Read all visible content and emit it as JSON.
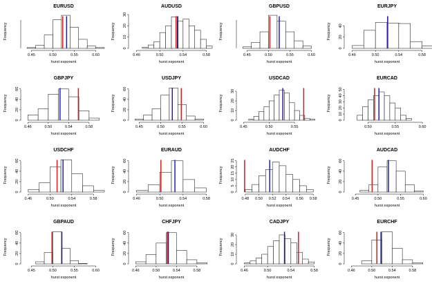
{
  "colors": {
    "red_line": "#d7191c",
    "blue_line": "#1f1fb4",
    "bar_stroke": "#000000",
    "bar_fill": "#ffffff"
  },
  "chart_data": [
    {
      "type": "histogram",
      "title": "EURUSD",
      "xlabel": "hurst exponent",
      "ylabel": "Frequency",
      "xlim": [
        0.43,
        0.62
      ],
      "x_ticks": [
        "0.45",
        "0.50",
        "0.55",
        "0.60"
      ],
      "ylim": [
        0,
        45
      ],
      "y_ticks": [],
      "bins": [
        [
          0.44,
          0.46
        ],
        [
          0.46,
          0.48
        ],
        [
          0.48,
          0.5
        ],
        [
          0.5,
          0.52
        ],
        [
          0.52,
          0.54
        ],
        [
          0.54,
          0.56
        ],
        [
          0.56,
          0.58
        ],
        [
          0.58,
          0.6
        ],
        [
          0.6,
          0.62
        ]
      ],
      "counts": [
        1,
        4,
        18,
        38,
        44,
        28,
        12,
        3,
        1
      ],
      "red_line": 0.523,
      "blue_line": 0.532
    },
    {
      "type": "histogram",
      "title": "AUDUSD",
      "xlabel": "hurst exponent",
      "ylabel": "Frequency",
      "xlim": [
        0.45,
        0.59
      ],
      "x_ticks": [
        "0.46",
        "0.50",
        "0.54",
        "0.58"
      ],
      "ylim": [
        0,
        30
      ],
      "y_ticks": [
        "0",
        "10",
        "20",
        "30"
      ],
      "bins": [
        [
          0.47,
          0.48
        ],
        [
          0.48,
          0.49
        ],
        [
          0.49,
          0.5
        ],
        [
          0.5,
          0.51
        ],
        [
          0.51,
          0.52
        ],
        [
          0.52,
          0.53
        ],
        [
          0.53,
          0.54
        ],
        [
          0.54,
          0.55
        ],
        [
          0.55,
          0.56
        ],
        [
          0.56,
          0.57
        ],
        [
          0.57,
          0.58
        ],
        [
          0.58,
          0.59
        ]
      ],
      "counts": [
        1,
        3,
        6,
        14,
        20,
        28,
        24,
        26,
        20,
        16,
        8,
        2
      ],
      "red_line": 0.528,
      "blue_line": 0.531
    },
    {
      "type": "histogram",
      "title": "GBPUSD",
      "xlabel": "hurst exponent",
      "ylabel": "Frequency",
      "xlim": [
        0.43,
        0.62
      ],
      "x_ticks": [
        "0.45",
        "0.50",
        "0.55",
        "0.60"
      ],
      "ylim": [
        0,
        45
      ],
      "y_ticks": [],
      "bins": [
        [
          0.44,
          0.46
        ],
        [
          0.46,
          0.48
        ],
        [
          0.48,
          0.5
        ],
        [
          0.5,
          0.52
        ],
        [
          0.52,
          0.54
        ],
        [
          0.54,
          0.56
        ],
        [
          0.56,
          0.58
        ],
        [
          0.58,
          0.6
        ]
      ],
      "counts": [
        2,
        8,
        22,
        44,
        36,
        22,
        10,
        3
      ],
      "red_line": 0.503,
      "blue_line": 0.525
    },
    {
      "type": "histogram",
      "title": "EURJPY",
      "xlabel": "hurst exponent",
      "ylabel": "Frequency",
      "xlim": [
        0.45,
        0.59
      ],
      "x_ticks": [
        "0.46",
        "0.50",
        "0.54",
        "0.58"
      ],
      "ylim": [
        0,
        60
      ],
      "y_ticks": [
        "0",
        "20",
        "40"
      ],
      "bins": [
        [
          0.46,
          0.48
        ],
        [
          0.48,
          0.5
        ],
        [
          0.5,
          0.52
        ],
        [
          0.52,
          0.54
        ],
        [
          0.54,
          0.56
        ],
        [
          0.56,
          0.58
        ],
        [
          0.58,
          0.6
        ]
      ],
      "counts": [
        5,
        32,
        46,
        45,
        44,
        12,
        4
      ],
      "red_line": 0.521,
      "blue_line": 0.521
    },
    {
      "type": "histogram",
      "title": "GBPJPY",
      "xlabel": "hurst exponent",
      "ylabel": "Frequency",
      "xlim": [
        0.45,
        0.61
      ],
      "x_ticks": [
        "0.46",
        "0.50",
        "0.54",
        "0.58"
      ],
      "ylim": [
        0,
        65
      ],
      "y_ticks": [
        "0",
        "20",
        "40",
        "60"
      ],
      "bins": [
        [
          0.46,
          0.48
        ],
        [
          0.48,
          0.5
        ],
        [
          0.5,
          0.52
        ],
        [
          0.52,
          0.54
        ],
        [
          0.54,
          0.56
        ],
        [
          0.56,
          0.58
        ],
        [
          0.58,
          0.6
        ]
      ],
      "counts": [
        10,
        22,
        50,
        60,
        45,
        18,
        4
      ],
      "red_line": 0.559,
      "blue_line": 0.523
    },
    {
      "type": "histogram",
      "title": "USDJPY",
      "xlabel": "hurst exponent",
      "ylabel": "Frequency",
      "xlim": [
        0.43,
        0.62
      ],
      "x_ticks": [
        "0.45",
        "0.50",
        "0.55",
        "0.60"
      ],
      "ylim": [
        0,
        65
      ],
      "y_ticks": [
        "0",
        "20",
        "40",
        "60"
      ],
      "bins": [
        [
          0.44,
          0.46
        ],
        [
          0.46,
          0.48
        ],
        [
          0.48,
          0.5
        ],
        [
          0.5,
          0.52
        ],
        [
          0.52,
          0.54
        ],
        [
          0.54,
          0.56
        ],
        [
          0.56,
          0.58
        ],
        [
          0.58,
          0.6
        ]
      ],
      "counts": [
        2,
        10,
        22,
        48,
        62,
        30,
        8,
        2
      ],
      "red_line": 0.548,
      "blue_line": 0.527
    },
    {
      "type": "histogram",
      "title": "USDCAD",
      "xlabel": "hurst exponent",
      "ylabel": "Frequency",
      "xlim": [
        0.44,
        0.6
      ],
      "x_ticks": [
        "0.45",
        "0.50",
        "0.55"
      ],
      "ylim": [
        0,
        35
      ],
      "y_ticks": [
        "0",
        "10",
        "20",
        "30"
      ],
      "bins": [
        [
          0.46,
          0.47
        ],
        [
          0.47,
          0.48
        ],
        [
          0.48,
          0.49
        ],
        [
          0.49,
          0.5
        ],
        [
          0.5,
          0.51
        ],
        [
          0.51,
          0.52
        ],
        [
          0.52,
          0.53
        ],
        [
          0.53,
          0.54
        ],
        [
          0.54,
          0.55
        ],
        [
          0.55,
          0.56
        ],
        [
          0.56,
          0.57
        ],
        [
          0.57,
          0.58
        ],
        [
          0.58,
          0.59
        ]
      ],
      "counts": [
        1,
        4,
        9,
        14,
        20,
        26,
        31,
        28,
        18,
        10,
        5,
        2,
        1
      ],
      "red_line": 0.568,
      "blue_line": 0.527
    },
    {
      "type": "histogram",
      "title": "EURCAD",
      "xlabel": "hurst exponent",
      "ylabel": "Frequency",
      "xlim": [
        0.46,
        0.61
      ],
      "x_ticks": [
        "0.50",
        "0.55",
        "0.60"
      ],
      "ylim": [
        0,
        55
      ],
      "y_ticks": [
        "0",
        "10",
        "20",
        "30",
        "40",
        "50"
      ],
      "bins": [
        [
          0.48,
          0.49
        ],
        [
          0.49,
          0.5
        ],
        [
          0.5,
          0.51
        ],
        [
          0.51,
          0.52
        ],
        [
          0.52,
          0.53
        ],
        [
          0.53,
          0.54
        ],
        [
          0.54,
          0.55
        ],
        [
          0.55,
          0.56
        ],
        [
          0.56,
          0.57
        ],
        [
          0.57,
          0.58
        ]
      ],
      "counts": [
        8,
        22,
        33,
        40,
        46,
        40,
        28,
        20,
        8,
        3
      ],
      "red_line": 0.512,
      "blue_line": 0.52
    },
    {
      "type": "histogram",
      "title": "USDCHF",
      "xlabel": "hurst exponent",
      "ylabel": "Frequency",
      "xlim": [
        0.45,
        0.6
      ],
      "x_ticks": [
        "0.46",
        "0.50",
        "0.54",
        "0.58"
      ],
      "ylim": [
        0,
        65
      ],
      "y_ticks": [
        "0",
        "20",
        "40",
        "60"
      ],
      "bins": [
        [
          0.46,
          0.48
        ],
        [
          0.48,
          0.5
        ],
        [
          0.5,
          0.52
        ],
        [
          0.52,
          0.54
        ],
        [
          0.54,
          0.56
        ],
        [
          0.56,
          0.58
        ],
        [
          0.58,
          0.6
        ]
      ],
      "counts": [
        5,
        18,
        48,
        62,
        35,
        12,
        3
      ],
      "red_line": 0.513,
      "blue_line": 0.524
    },
    {
      "type": "histogram",
      "title": "EURAUD",
      "xlabel": "hurst exponent",
      "ylabel": "Frequency",
      "xlim": [
        0.45,
        0.59
      ],
      "x_ticks": [
        "0.46",
        "0.50",
        "0.54",
        "0.58"
      ],
      "ylim": [
        0,
        65
      ],
      "y_ticks": [
        "0",
        "20",
        "40",
        "60"
      ],
      "bins": [
        [
          0.46,
          0.48
        ],
        [
          0.48,
          0.5
        ],
        [
          0.5,
          0.52
        ],
        [
          0.52,
          0.54
        ],
        [
          0.54,
          0.56
        ],
        [
          0.56,
          0.58
        ]
      ],
      "counts": [
        3,
        14,
        38,
        60,
        24,
        8
      ],
      "red_line": 0.502,
      "blue_line": 0.526
    },
    {
      "type": "histogram",
      "title": "AUDCHF",
      "xlabel": "hurst exponent",
      "ylabel": "Frequency",
      "xlim": [
        0.47,
        0.59
      ],
      "x_ticks": [
        "0.48",
        "0.50",
        "0.52",
        "0.54",
        "0.56",
        "0.58"
      ],
      "ylim": [
        0,
        27
      ],
      "y_ticks": [
        "0",
        "5",
        "10",
        "15",
        "20",
        "25"
      ],
      "bins": [
        [
          0.48,
          0.49
        ],
        [
          0.49,
          0.5
        ],
        [
          0.5,
          0.51
        ],
        [
          0.51,
          0.52
        ],
        [
          0.52,
          0.53
        ],
        [
          0.53,
          0.54
        ],
        [
          0.54,
          0.55
        ],
        [
          0.55,
          0.56
        ],
        [
          0.56,
          0.57
        ],
        [
          0.57,
          0.58
        ]
      ],
      "counts": [
        2,
        6,
        13,
        18,
        24,
        21,
        14,
        10,
        5,
        2
      ],
      "red_line": 0.479,
      "blue_line": 0.516
    },
    {
      "type": "histogram",
      "title": "AUDCAD",
      "xlabel": "hurst exponent",
      "ylabel": "Frequency",
      "xlim": [
        0.43,
        0.61
      ],
      "x_ticks": [
        "0.45",
        "0.50",
        "0.55",
        "0.60"
      ],
      "ylim": [
        0,
        65
      ],
      "y_ticks": [
        "0",
        "20",
        "40",
        "60"
      ],
      "bins": [
        [
          0.46,
          0.48
        ],
        [
          0.48,
          0.5
        ],
        [
          0.5,
          0.52
        ],
        [
          0.52,
          0.54
        ],
        [
          0.54,
          0.56
        ],
        [
          0.56,
          0.58
        ],
        [
          0.58,
          0.6
        ]
      ],
      "counts": [
        3,
        14,
        48,
        60,
        40,
        14,
        2
      ],
      "red_line": 0.487,
      "blue_line": 0.523
    },
    {
      "type": "histogram",
      "title": "GBPAUD",
      "xlabel": "hurst exponent",
      "ylabel": "Frequency",
      "xlim": [
        0.43,
        0.62
      ],
      "x_ticks": [
        "0.45",
        "0.50",
        "0.55",
        "0.60"
      ],
      "ylim": [
        0,
        65
      ],
      "y_ticks": [
        "0",
        "20",
        "40",
        "60"
      ],
      "bins": [
        [
          0.46,
          0.48
        ],
        [
          0.48,
          0.5
        ],
        [
          0.5,
          0.52
        ],
        [
          0.52,
          0.54
        ],
        [
          0.54,
          0.56
        ],
        [
          0.56,
          0.58
        ]
      ],
      "counts": [
        4,
        22,
        62,
        30,
        6,
        1
      ],
      "red_line": 0.498,
      "blue_line": 0.521
    },
    {
      "type": "histogram",
      "title": "CHFJPY",
      "xlabel": "hurst exponent",
      "ylabel": "Frequency",
      "xlim": [
        0.45,
        0.61
      ],
      "x_ticks": [
        "0.46",
        "0.50",
        "0.54",
        "0.58"
      ],
      "ylim": [
        0,
        65
      ],
      "y_ticks": [
        "0",
        "20",
        "40",
        "60"
      ],
      "bins": [
        [
          0.46,
          0.48
        ],
        [
          0.48,
          0.5
        ],
        [
          0.5,
          0.52
        ],
        [
          0.52,
          0.54
        ],
        [
          0.54,
          0.56
        ],
        [
          0.56,
          0.58
        ],
        [
          0.58,
          0.6
        ]
      ],
      "counts": [
        4,
        18,
        40,
        60,
        26,
        8,
        2
      ],
      "red_line": 0.522,
      "blue_line": 0.524
    },
    {
      "type": "histogram",
      "title": "CADJPY",
      "xlabel": "hurst exponent",
      "ylabel": "Frequency",
      "xlim": [
        0.45,
        0.59
      ],
      "x_ticks": [
        "0.46",
        "0.50",
        "0.54",
        "0.58"
      ],
      "ylim": [
        0,
        35
      ],
      "y_ticks": [
        "0",
        "10",
        "20",
        "30"
      ],
      "bins": [
        [
          0.46,
          0.47
        ],
        [
          0.47,
          0.48
        ],
        [
          0.48,
          0.49
        ],
        [
          0.49,
          0.5
        ],
        [
          0.5,
          0.51
        ],
        [
          0.51,
          0.52
        ],
        [
          0.52,
          0.53
        ],
        [
          0.53,
          0.54
        ],
        [
          0.54,
          0.55
        ],
        [
          0.55,
          0.56
        ],
        [
          0.56,
          0.57
        ],
        [
          0.57,
          0.58
        ]
      ],
      "counts": [
        1,
        3,
        6,
        10,
        18,
        24,
        30,
        26,
        22,
        12,
        5,
        2
      ],
      "red_line": 0.553,
      "blue_line": 0.529
    },
    {
      "type": "histogram",
      "title": "EURCHF",
      "xlabel": "hurst exponent",
      "ylabel": "Frequency",
      "xlim": [
        0.45,
        0.61
      ],
      "x_ticks": [
        "0.46",
        "0.50",
        "0.54",
        "0.58"
      ],
      "ylim": [
        0,
        65
      ],
      "y_ticks": [
        "0",
        "20",
        "40",
        "60"
      ],
      "bins": [
        [
          0.48,
          0.5
        ],
        [
          0.5,
          0.52
        ],
        [
          0.52,
          0.54
        ],
        [
          0.54,
          0.56
        ],
        [
          0.56,
          0.58
        ],
        [
          0.58,
          0.6
        ]
      ],
      "counts": [
        6,
        46,
        62,
        30,
        8,
        2
      ],
      "red_line": 0.51,
      "blue_line": 0.518
    }
  ]
}
